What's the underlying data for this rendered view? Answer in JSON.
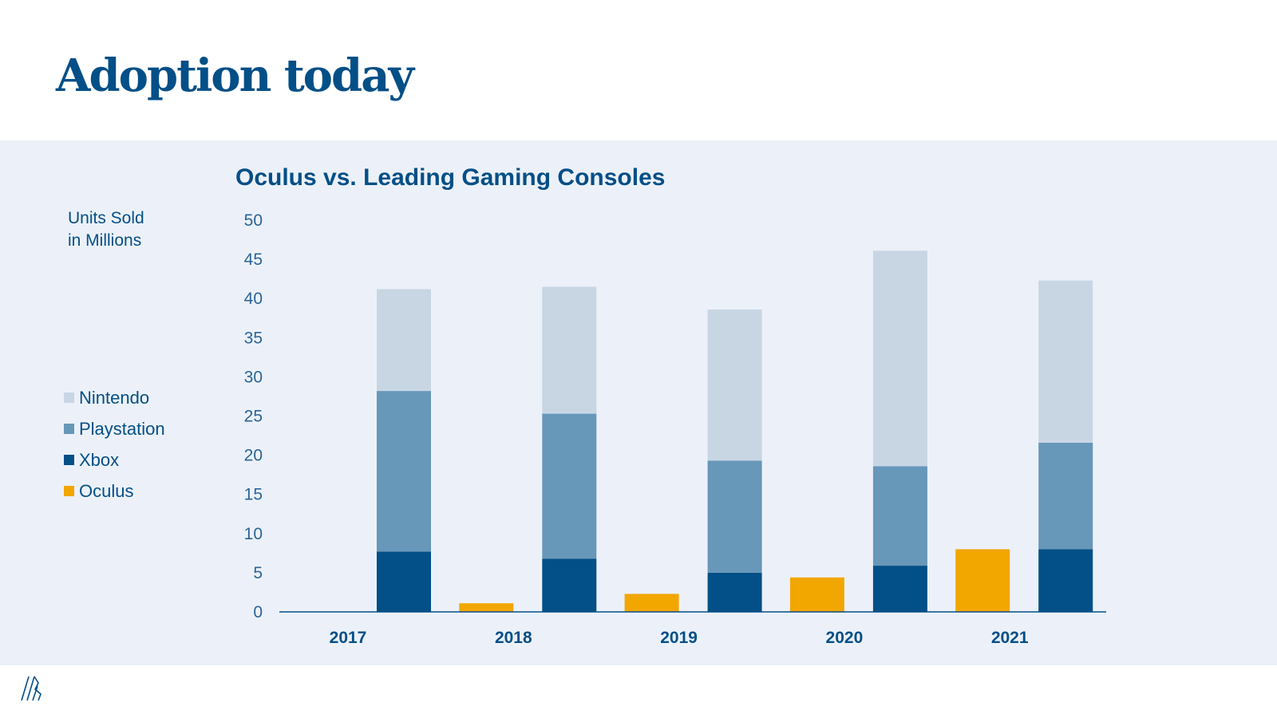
{
  "slide": {
    "title": "Adoption today",
    "logo_icon": "stripes-logo-icon"
  },
  "colors": {
    "primary": "#034f87",
    "panel_bg": "#ecf1f9",
    "nintendo": "#c8d6e4",
    "playstation": "#6797b9",
    "xbox": "#034f87",
    "oculus": "#f2a600"
  },
  "chart_data": {
    "type": "bar",
    "title": "Oculus vs. Leading Gaming Consoles",
    "ylabel": "Units Sold in Millions",
    "ylabel_lines": [
      "Units Sold",
      "in Millions"
    ],
    "xlabel": "",
    "ylim": [
      0,
      50
    ],
    "yticks": [
      0,
      5,
      10,
      15,
      20,
      25,
      30,
      35,
      40,
      45,
      50
    ],
    "grid": false,
    "legend_position": "left",
    "categories": [
      "2017",
      "2018",
      "2019",
      "2020",
      "2021"
    ],
    "layout_note": "each year shows an Oculus bar followed by a stacked consoles bar",
    "series": [
      {
        "name": "Nintendo",
        "stack": "consoles",
        "color": "#c8d6e4",
        "values": [
          13.0,
          16.2,
          19.3,
          27.5,
          20.7
        ]
      },
      {
        "name": "Playstation",
        "stack": "consoles",
        "color": "#6797b9",
        "values": [
          20.5,
          18.5,
          14.3,
          12.7,
          13.6
        ]
      },
      {
        "name": "Xbox",
        "stack": "consoles",
        "color": "#034f87",
        "values": [
          7.7,
          6.8,
          5.0,
          5.9,
          8.0
        ]
      },
      {
        "name": "Oculus",
        "stack": "oculus",
        "color": "#f2a600",
        "values": [
          0,
          1.1,
          2.3,
          4.4,
          8.0
        ]
      }
    ],
    "legend": [
      "Nintendo",
      "Playstation",
      "Xbox",
      "Oculus"
    ]
  }
}
